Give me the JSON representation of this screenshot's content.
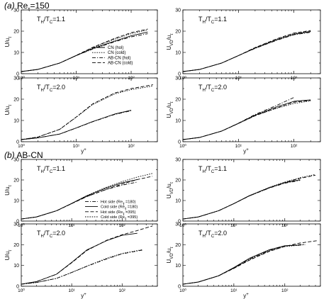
{
  "figure": {
    "sections": [
      {
        "id": "a",
        "label": "(a)",
        "title": "Re",
        "title_sub": "τ",
        "title_tail": "=150"
      },
      {
        "id": "b",
        "label": "(b)",
        "title": "AB-CN",
        "title_sub": "",
        "title_tail": ""
      }
    ]
  },
  "chart_data": [
    {
      "type": "line",
      "panel": "a-top-left",
      "log_x": true,
      "xlim": [
        1,
        300
      ],
      "ylim": [
        0,
        30
      ],
      "xticks": [
        1,
        10,
        100
      ],
      "yticks": [
        0,
        10,
        20,
        30
      ],
      "xtick_labels": [
        "10⁰",
        "10¹",
        "10²"
      ],
      "ytick_labels": [
        "0",
        "10",
        "20",
        "30"
      ],
      "ylabel": "U/u",
      "ylabel_sub": "τ",
      "xlabel": "",
      "annotation": "T_H/T_C=1.1",
      "legend": {
        "placement": "center-right",
        "entries": [
          "CN (hol)",
          "CN (cold)",
          "AB-CN (hol)",
          "AB-CN (cold)"
        ]
      },
      "series": [
        {
          "name": "CN (hol)",
          "dash": "solid",
          "x": [
            1,
            2,
            5,
            10,
            20,
            50,
            100,
            200
          ],
          "values": [
            1,
            2,
            5,
            8.5,
            11.8,
            15.3,
            17.8,
            19.6
          ]
        },
        {
          "name": "CN (cold)",
          "dash": "dot",
          "x": [
            1,
            2,
            5,
            10,
            20,
            50,
            100,
            200
          ],
          "values": [
            1,
            2,
            5,
            8.6,
            12.2,
            16.2,
            18.8,
            20.6
          ]
        },
        {
          "name": "AB-CN (hol)",
          "dash": "dashdot",
          "x": [
            1,
            2,
            5,
            10,
            20,
            50,
            100,
            200
          ],
          "values": [
            1,
            2,
            5,
            8.5,
            11.6,
            15,
            17.3,
            18.8
          ]
        },
        {
          "name": "AB-CN (cold)",
          "dash": "longdash",
          "x": [
            1,
            2,
            5,
            10,
            20,
            50,
            100,
            200
          ],
          "values": [
            1,
            2,
            5,
            8.6,
            12.4,
            16.6,
            19.3,
            21
          ]
        }
      ]
    },
    {
      "type": "line",
      "panel": "a-top-right",
      "log_x": true,
      "xlim": [
        1,
        300
      ],
      "ylim": [
        0,
        30
      ],
      "xticks": [
        1,
        10,
        100
      ],
      "yticks": [
        0,
        10,
        20,
        30
      ],
      "xtick_labels": [
        "10⁰",
        "10¹",
        "10²"
      ],
      "ytick_labels": [
        "0",
        "10",
        "20",
        "30"
      ],
      "ylabel": "U",
      "ylabel_sub": "VD",
      "ylabel_tail": "/u",
      "ylabel_sub2": "τ",
      "xlabel": "",
      "annotation": "T_H/T_C=1.1",
      "series": [
        {
          "name": "",
          "dash": "solid",
          "x": [
            1,
            2,
            5,
            10,
            20,
            50,
            100,
            200
          ],
          "values": [
            1,
            2,
            5,
            8.5,
            12,
            16,
            18.5,
            19.8
          ]
        },
        {
          "name": "",
          "dash": "dot",
          "x": [
            1,
            2,
            5,
            10,
            20,
            50,
            100,
            200
          ],
          "values": [
            1,
            2,
            5,
            8.5,
            12.2,
            16.3,
            18.9,
            20
          ]
        },
        {
          "name": "",
          "dash": "dashdot",
          "x": [
            1,
            2,
            5,
            10,
            20,
            50,
            100,
            200
          ],
          "values": [
            1,
            2,
            5,
            8.5,
            11.9,
            15.8,
            18.3,
            19.5
          ]
        },
        {
          "name": "",
          "dash": "longdash",
          "x": [
            1,
            2,
            5,
            10,
            20,
            50,
            100,
            200
          ],
          "values": [
            1,
            2,
            5,
            8.5,
            12.3,
            16.5,
            19.1,
            20.3
          ]
        }
      ]
    },
    {
      "type": "line",
      "panel": "a-bottom-left",
      "log_x": true,
      "xlim": [
        1,
        300
      ],
      "ylim": [
        0,
        30
      ],
      "xticks": [
        1,
        10,
        100
      ],
      "yticks": [
        0,
        10,
        20,
        30
      ],
      "xtick_labels": [
        "10⁰",
        "10¹",
        "10²"
      ],
      "ytick_labels": [
        "0",
        "10",
        "20",
        "30"
      ],
      "ylabel": "U/u",
      "ylabel_sub": "τ",
      "xlabel": "y",
      "xlabel_sup": "+",
      "annotation": "T_H/T_C=2.0",
      "series": [
        {
          "name": "",
          "dash": "solid",
          "x": [
            1,
            2,
            5,
            10,
            20,
            50,
            100
          ],
          "values": [
            1,
            1.8,
            3.6,
            6.5,
            9.5,
            13,
            14.8
          ]
        },
        {
          "name": "",
          "dash": "dot",
          "x": [
            1,
            2,
            5,
            10,
            20,
            50,
            100,
            250
          ],
          "values": [
            1,
            2.2,
            5.8,
            11.5,
            17.5,
            22.5,
            24.5,
            26.2
          ]
        },
        {
          "name": "",
          "dash": "dashdot",
          "x": [
            1,
            2,
            5,
            10,
            20,
            50,
            100
          ],
          "values": [
            1,
            1.8,
            3.6,
            6.4,
            9.4,
            12.8,
            14.6
          ]
        },
        {
          "name": "",
          "dash": "longdash",
          "x": [
            1,
            2,
            5,
            10,
            20,
            50,
            100,
            250
          ],
          "values": [
            1,
            2.2,
            5.8,
            11.6,
            17.8,
            22.9,
            25,
            26.8
          ]
        }
      ]
    },
    {
      "type": "line",
      "panel": "a-bottom-right",
      "log_x": true,
      "xlim": [
        1,
        300
      ],
      "ylim": [
        0,
        30
      ],
      "xticks": [
        1,
        10,
        100
      ],
      "yticks": [
        0,
        10,
        20,
        30
      ],
      "xtick_labels": [
        "10⁰",
        "10¹",
        "10²"
      ],
      "ytick_labels": [
        "0",
        "10",
        "20",
        "30"
      ],
      "ylabel": "U",
      "ylabel_sub": "VD",
      "ylabel_tail": "/u",
      "ylabel_sub2": "τ",
      "xlabel": "y",
      "xlabel_sup": "+",
      "annotation": "T_H/T_C=2.0",
      "series": [
        {
          "name": "",
          "dash": "solid",
          "x": [
            1,
            2,
            5,
            10,
            20,
            50,
            100,
            200
          ],
          "values": [
            1,
            2,
            5,
            8.6,
            12.5,
            16.5,
            19,
            19.7
          ]
        },
        {
          "name": "",
          "dash": "dot",
          "x": [
            1,
            2,
            5,
            10,
            20,
            50,
            100,
            200
          ],
          "values": [
            1,
            2,
            5,
            8.6,
            12.3,
            15.8,
            18,
            19.2
          ]
        },
        {
          "name": "",
          "dash": "dashdot",
          "x": [
            1,
            2,
            5,
            10,
            20,
            50,
            100
          ],
          "values": [
            1,
            2,
            5,
            8.7,
            12.8,
            17.2,
            20.8
          ]
        },
        {
          "name": "",
          "dash": "longdash",
          "x": [
            1,
            2,
            5,
            10,
            20,
            50,
            100,
            200
          ],
          "values": [
            1,
            2,
            5,
            8.6,
            12.2,
            16,
            18.6,
            19.4
          ]
        }
      ]
    },
    {
      "type": "line",
      "panel": "b-top-left",
      "log_x": true,
      "xlim": [
        1,
        500
      ],
      "ylim": [
        0,
        30
      ],
      "xticks": [
        1,
        10,
        100
      ],
      "yticks": [
        0,
        10,
        20,
        30
      ],
      "xtick_labels": [
        "10⁰",
        "10¹",
        "10²"
      ],
      "ytick_labels": [
        "0",
        "10",
        "20",
        "30"
      ],
      "ylabel": "U/u",
      "ylabel_sub": "τ",
      "xlabel": "",
      "annotation": "T_H/T_C=1.1",
      "legend": {
        "placement": "lower-right",
        "entries": [
          "Hot side (Re_τ =180)",
          "Cold side (Re_τ =180)",
          "Hot side (Re_τ =395)",
          "Cold side (Re_τ =395)"
        ]
      },
      "series": [
        {
          "name": "Hot side (Re_τ =180)",
          "dash": "dashdot",
          "x": [
            1,
            2,
            5,
            10,
            20,
            50,
            100,
            200
          ],
          "values": [
            1,
            2,
            5,
            8.5,
            12,
            15.5,
            17.5,
            19
          ]
        },
        {
          "name": "Cold side (Re_τ =180)",
          "dash": "solid",
          "x": [
            1,
            2,
            5,
            10,
            20,
            50,
            100,
            200
          ],
          "values": [
            1,
            2,
            5,
            8.6,
            12.3,
            16.2,
            18.6,
            20.2
          ]
        },
        {
          "name": "Hot side (Re_τ =395)",
          "dash": "longdash",
          "x": [
            1,
            2,
            5,
            10,
            20,
            50,
            100,
            200,
            400
          ],
          "values": [
            1,
            2,
            5,
            8.5,
            11.9,
            15.6,
            18,
            20.2,
            21.8
          ]
        },
        {
          "name": "Cold side (Re_τ =395)",
          "dash": "dot",
          "x": [
            1,
            2,
            5,
            10,
            20,
            50,
            100,
            200,
            400
          ],
          "values": [
            1,
            2,
            5,
            8.6,
            12.4,
            16.6,
            19.2,
            21.4,
            23.2
          ]
        }
      ]
    },
    {
      "type": "line",
      "panel": "b-top-right",
      "log_x": true,
      "xlim": [
        1,
        500
      ],
      "ylim": [
        0,
        30
      ],
      "xticks": [
        1,
        10,
        100
      ],
      "yticks": [
        0,
        10,
        20,
        30
      ],
      "xtick_labels": [
        "10⁰",
        "10¹",
        "10²"
      ],
      "ytick_labels": [
        "0",
        "10",
        "20",
        "30"
      ],
      "ylabel": "U",
      "ylabel_sub": "VD",
      "ylabel_tail": "/u",
      "ylabel_sub2": "τ",
      "xlabel": "",
      "annotation": "T_H/T_C=1.1",
      "series": [
        {
          "name": "",
          "dash": "dashdot",
          "x": [
            1,
            2,
            5,
            10,
            20,
            50,
            100,
            200
          ],
          "values": [
            1,
            2,
            5,
            8.5,
            12.2,
            16.1,
            18.4,
            19.8
          ]
        },
        {
          "name": "",
          "dash": "solid",
          "x": [
            1,
            2,
            5,
            10,
            20,
            50,
            100,
            200
          ],
          "values": [
            1,
            2,
            5,
            8.5,
            12.3,
            16.3,
            18.7,
            20.1
          ]
        },
        {
          "name": "",
          "dash": "longdash",
          "x": [
            1,
            2,
            5,
            10,
            20,
            50,
            100,
            200,
            400
          ],
          "values": [
            1,
            2,
            5,
            8.5,
            12.2,
            16.2,
            18.8,
            20.8,
            22.3
          ]
        },
        {
          "name": "",
          "dash": "dot",
          "x": [
            1,
            2,
            5,
            10,
            20,
            50,
            100,
            200,
            400
          ],
          "values": [
            1,
            2,
            5,
            8.5,
            12.3,
            16.4,
            19,
            21.1,
            22.7
          ]
        }
      ]
    },
    {
      "type": "line",
      "panel": "b-bottom-left",
      "log_x": true,
      "xlim": [
        1,
        500
      ],
      "ylim": [
        0,
        30
      ],
      "xticks": [
        1,
        10,
        100
      ],
      "yticks": [
        0,
        10,
        20,
        30
      ],
      "xtick_labels": [
        "10⁰",
        "10¹",
        "10²"
      ],
      "ytick_labels": [
        "0",
        "10",
        "20",
        "30"
      ],
      "ylabel": "U/u",
      "ylabel_sub": "τ",
      "xlabel": "y",
      "xlabel_sup": "+",
      "annotation": "T_H/T_C=2.0",
      "series": [
        {
          "name": "",
          "dash": "dashdot",
          "x": [
            1,
            2,
            5,
            10,
            20,
            50,
            100,
            250
          ],
          "values": [
            1,
            1.8,
            3.8,
            6.6,
            9.6,
            13.2,
            15.6,
            17.4
          ]
        },
        {
          "name": "",
          "dash": "solid",
          "x": [
            1,
            2,
            5,
            10,
            20,
            50,
            100,
            200
          ],
          "values": [
            1,
            2.2,
            5.8,
            11.5,
            17.5,
            22,
            24.5,
            25.5
          ]
        },
        {
          "name": "",
          "dash": "longdash",
          "x": [
            1,
            2,
            5,
            10,
            20,
            50,
            100,
            200,
            400
          ],
          "values": [
            1,
            2.2,
            5.8,
            11.3,
            17.2,
            22.2,
            24.8,
            26.8,
            29
          ]
        },
        {
          "name": "",
          "dash": "dot",
          "x": [
            1,
            2,
            5,
            10,
            20,
            50,
            100,
            250
          ],
          "values": [
            1,
            1.8,
            3.8,
            6.6,
            9.7,
            13.5,
            15.8,
            17.6
          ]
        }
      ]
    },
    {
      "type": "line",
      "panel": "b-bottom-right",
      "log_x": true,
      "xlim": [
        1,
        500
      ],
      "ylim": [
        0,
        30
      ],
      "xticks": [
        1,
        10,
        100
      ],
      "yticks": [
        0,
        10,
        20,
        30
      ],
      "xtick_labels": [
        "10⁰",
        "10¹",
        "10²"
      ],
      "ytick_labels": [
        "0",
        "10",
        "20",
        "30"
      ],
      "ylabel": "U",
      "ylabel_sub": "VD",
      "ylabel_tail": "/u",
      "ylabel_sub2": "τ",
      "xlabel": "y",
      "xlabel_sup": "+",
      "annotation": "T_H/T_C=2.0",
      "series": [
        {
          "name": "",
          "dash": "dashdot",
          "x": [
            1,
            2,
            5,
            10,
            20,
            50,
            100,
            250
          ],
          "values": [
            1,
            2,
            5,
            8.8,
            13,
            17.3,
            19.4,
            20.2
          ]
        },
        {
          "name": "",
          "dash": "solid",
          "x": [
            1,
            2,
            5,
            10,
            20,
            50,
            100,
            200
          ],
          "values": [
            1,
            2,
            5,
            9,
            13.4,
            17.6,
            19.5,
            19.8
          ]
        },
        {
          "name": "",
          "dash": "longdash",
          "x": [
            1,
            2,
            5,
            10,
            20,
            50,
            100,
            200,
            450
          ],
          "values": [
            1,
            2,
            5,
            8.6,
            12.5,
            16.8,
            19.2,
            20.8,
            22
          ]
        },
        {
          "name": "",
          "dash": "dot",
          "x": [
            1,
            2,
            5,
            10,
            20,
            50,
            100,
            250
          ],
          "values": [
            1,
            2,
            5,
            8.7,
            12.8,
            17,
            19.1,
            20
          ]
        }
      ]
    }
  ]
}
